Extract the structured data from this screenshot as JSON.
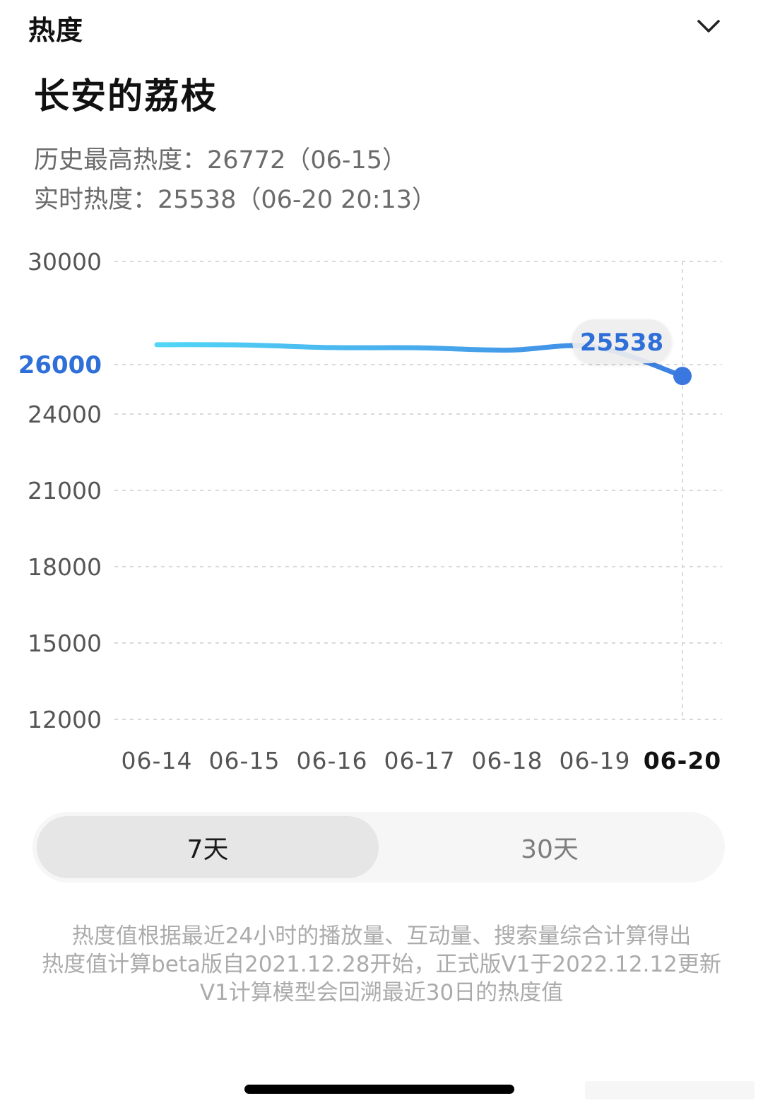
{
  "header": {
    "title": "热度",
    "collapse_icon": "chevron-down-icon"
  },
  "title": "长安的荔枝",
  "stats": {
    "history_high": "历史最高热度：26772（06-15）",
    "realtime": "实时热度：25538（06-20 20:13）"
  },
  "chart_data": {
    "type": "line",
    "x": [
      "06-14",
      "06-15",
      "06-16",
      "06-17",
      "06-18",
      "06-19",
      "06-20"
    ],
    "series": [
      {
        "values": [
          26772,
          26760,
          26660,
          26650,
          26560,
          26680,
          25538
        ]
      }
    ],
    "y_ticks": [
      {
        "label": "30000",
        "value": 30000
      },
      {
        "label": "26000",
        "value": 26000,
        "highlight": true
      },
      {
        "label": "24000",
        "value": 24000
      },
      {
        "label": "21000",
        "value": 21000
      },
      {
        "label": "18000",
        "value": 18000
      },
      {
        "label": "15000",
        "value": 15000
      },
      {
        "label": "12000",
        "value": 12000
      }
    ],
    "tooltip": {
      "label": "25538",
      "x": "06-20"
    },
    "selected_x": "06-20",
    "grid": true,
    "colors": {
      "line_start": "#52d6f6",
      "line_end": "#3d7fe3",
      "point": "#3a78e0",
      "tick_highlight": "#2f6fd8",
      "tick": "#555555",
      "grid": "#d9d9d9"
    }
  },
  "range_selector": {
    "options": [
      "7天",
      "30天"
    ],
    "selected": "7天"
  },
  "notes": [
    "热度值根据最近24小时的播放量、互动量、搜索量综合计算得出",
    "热度值计算beta版自2021.12.28开始，正式版V1于2022.12.12更新",
    "V1计算模型会回溯最近30日的热度值"
  ]
}
